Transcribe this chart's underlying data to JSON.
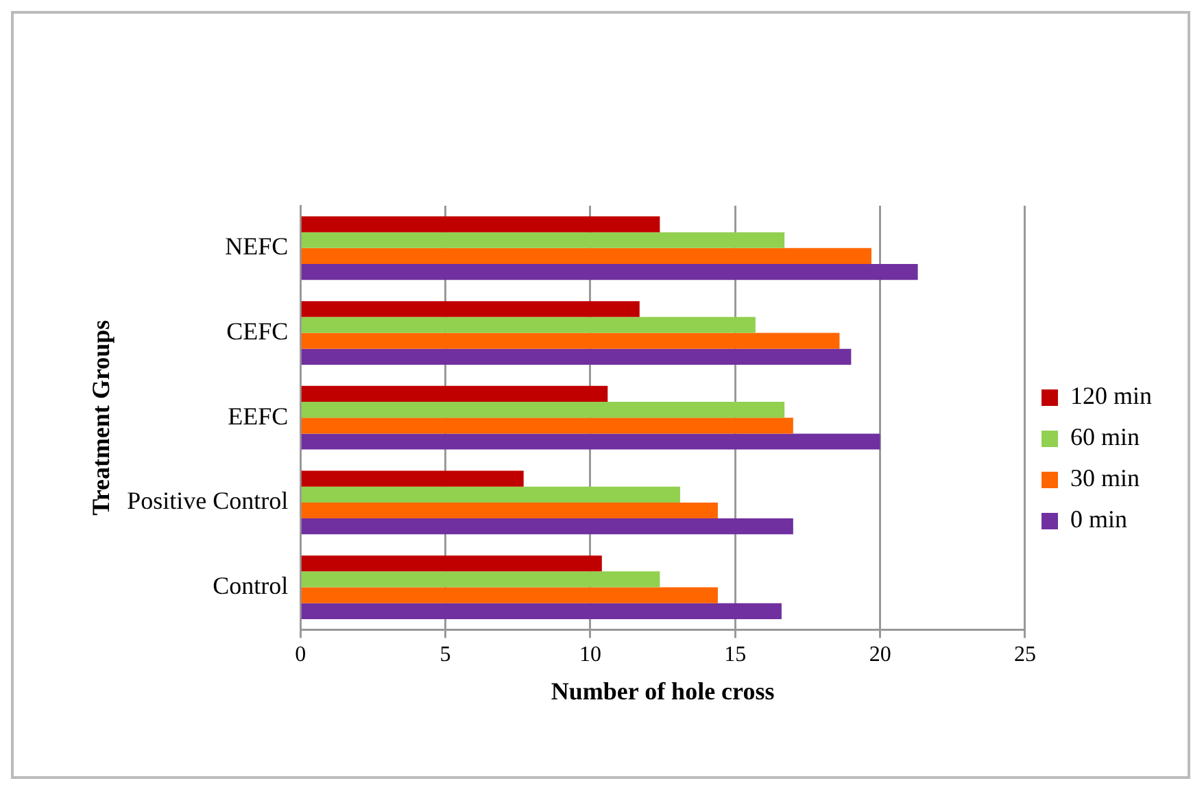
{
  "chart_data": {
    "type": "bar",
    "orientation": "horizontal",
    "xlabel": "Number of hole cross",
    "ylabel": "Treatment Groups",
    "categories": [
      "NEFC",
      "CEFC",
      "EEFC",
      "Positive Control",
      "Control"
    ],
    "series": [
      {
        "name": "120 min",
        "color": "#c00000",
        "values": [
          12.4,
          11.7,
          10.6,
          7.7,
          10.4
        ]
      },
      {
        "name": "60 min",
        "color": "#92d050",
        "values": [
          16.7,
          15.7,
          16.7,
          13.1,
          12.4
        ]
      },
      {
        "name": "30 min",
        "color": "#ff6600",
        "values": [
          19.7,
          18.6,
          17.0,
          14.4,
          14.4
        ]
      },
      {
        "name": "0 min",
        "color": "#7030a0",
        "values": [
          21.3,
          19.0,
          20.0,
          17.0,
          16.6
        ]
      }
    ],
    "xlim": [
      0,
      25
    ],
    "xticks": [
      0,
      5,
      10,
      15,
      20,
      25
    ],
    "grid": "x",
    "legend": "right"
  }
}
